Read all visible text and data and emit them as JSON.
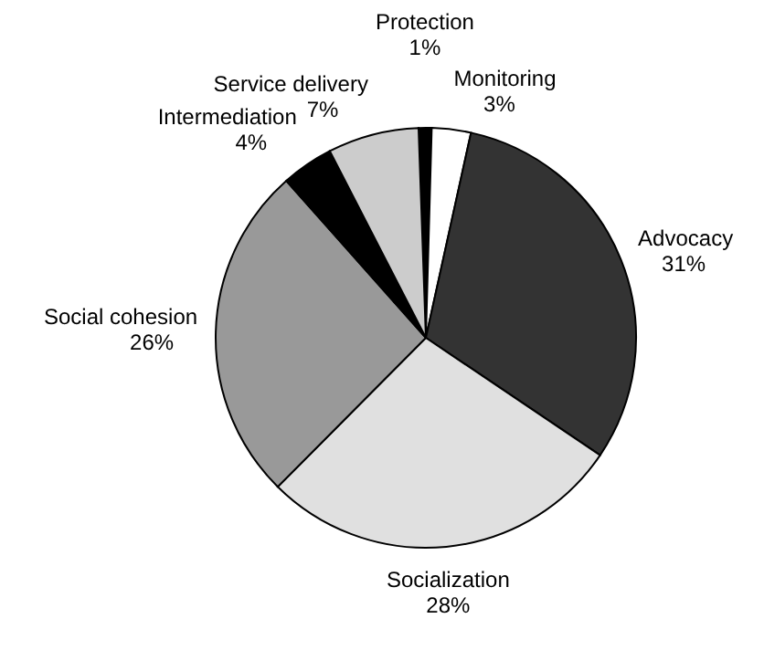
{
  "chart_data": {
    "type": "pie",
    "categories": [
      "Protection",
      "Monitoring",
      "Advocacy",
      "Socialization",
      "Social cohesion",
      "Intermediation",
      "Service delivery"
    ],
    "values": [
      1,
      3,
      31,
      28,
      26,
      4,
      7
    ],
    "value_labels": [
      "1%",
      "3%",
      "31%",
      "28%",
      "26%",
      "4%",
      "7%"
    ],
    "colors": [
      "#000000",
      "#ffffff",
      "#333333",
      "#e0e0e0",
      "#999999",
      "#000000",
      "#cccccc"
    ]
  }
}
